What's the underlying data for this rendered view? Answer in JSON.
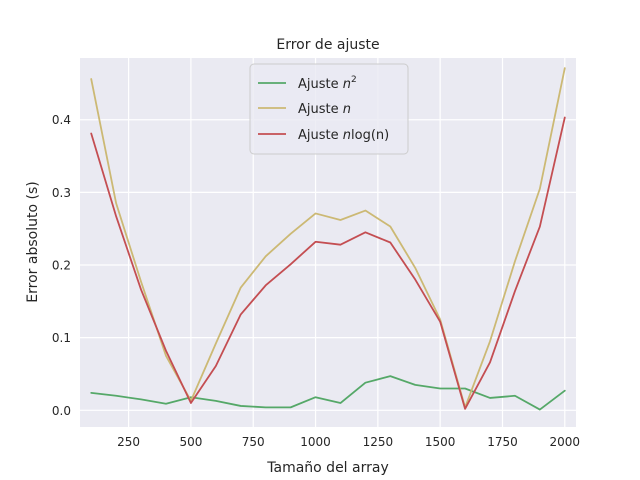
{
  "chart_data": {
    "type": "line",
    "title": "Error de ajuste",
    "xlabel": "Tamaño del array",
    "ylabel": "Error absoluto (s)",
    "xlim": [
      55,
      2045
    ],
    "ylim": [
      -0.023,
      0.485
    ],
    "xticks": [
      250,
      500,
      750,
      1000,
      1250,
      1500,
      1750,
      2000
    ],
    "yticks": [
      0.0,
      0.1,
      0.2,
      0.3,
      0.4
    ],
    "ytick_labels": [
      "0.0",
      "0.1",
      "0.2",
      "0.3",
      "0.4"
    ],
    "grid": true,
    "legend_position": "top-center",
    "x": [
      100,
      200,
      300,
      400,
      500,
      600,
      700,
      800,
      900,
      1000,
      1100,
      1200,
      1300,
      1400,
      1500,
      1600,
      1700,
      1800,
      1900,
      2000
    ],
    "series": [
      {
        "name_base": "Ajuste ",
        "name_var": "n",
        "name_sup": "2",
        "name_tail": "",
        "color": "#55a868",
        "values": [
          0.024,
          0.02,
          0.015,
          0.009,
          0.018,
          0.013,
          0.006,
          0.004,
          0.004,
          0.018,
          0.01,
          0.038,
          0.047,
          0.035,
          0.03,
          0.03,
          0.017,
          0.02,
          0.001,
          0.027
        ]
      },
      {
        "name_base": "Ajuste ",
        "name_var": "n",
        "name_sup": "",
        "name_tail": "",
        "color": "#ccb974",
        "values": [
          0.456,
          0.285,
          0.177,
          0.075,
          0.013,
          0.092,
          0.169,
          0.212,
          0.243,
          0.271,
          0.262,
          0.275,
          0.253,
          0.196,
          0.125,
          0.004,
          0.095,
          0.205,
          0.305,
          0.471
        ]
      },
      {
        "name_base": "Ajuste ",
        "name_var": "n",
        "name_sup": "",
        "name_tail": "log(n)",
        "color": "#c44e52",
        "values": [
          0.381,
          0.267,
          0.166,
          0.082,
          0.01,
          0.061,
          0.132,
          0.172,
          0.201,
          0.232,
          0.228,
          0.245,
          0.231,
          0.18,
          0.122,
          0.002,
          0.066,
          0.164,
          0.253,
          0.403
        ]
      }
    ]
  },
  "colors": {
    "plot_background": "#eaeaf2",
    "grid": "#ffffff",
    "text": "#262626"
  }
}
